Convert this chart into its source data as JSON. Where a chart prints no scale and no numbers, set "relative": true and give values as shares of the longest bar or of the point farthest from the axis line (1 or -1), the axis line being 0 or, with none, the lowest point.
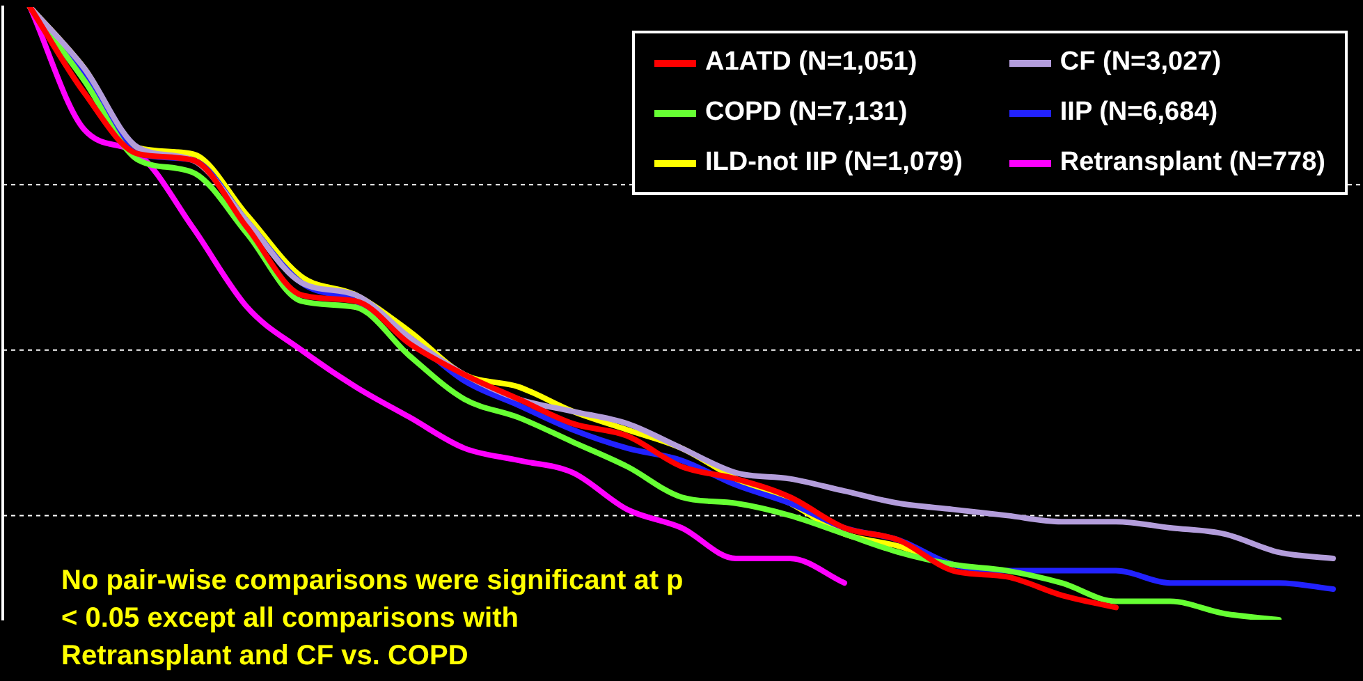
{
  "chart_data": {
    "type": "line",
    "relative": true,
    "ref_lines": [
      {
        "axis": "y",
        "value": 0.71,
        "color": "#ffffff",
        "line_style": "dashed"
      },
      {
        "axis": "y",
        "value": 0.44,
        "color": "#ffffff",
        "line_style": "dashed"
      },
      {
        "axis": "y",
        "value": 0.17,
        "color": "#ffffff",
        "line_style": "dashed"
      }
    ],
    "legend": "top right",
    "line_style": "solid",
    "marker": "none",
    "categories": [
      null,
      null,
      null,
      null,
      null,
      null,
      null,
      null,
      null,
      null,
      null,
      null,
      null,
      null,
      null,
      null,
      null,
      null,
      null,
      null,
      null,
      null,
      null,
      null,
      null
    ],
    "series": [
      {
        "name": "A1ATD (N=1,051)",
        "color": "#ff0000",
        "values": [
          1,
          0.86,
          0.76,
          0.75,
          0.64,
          0.53,
          0.52,
          0.45,
          0.4,
          0.36,
          0.32,
          0.3,
          0.25,
          0.23,
          0.2,
          0.15,
          0.13,
          0.08,
          0.07,
          0.04,
          0.02,
          null,
          null,
          null,
          null
        ]
      },
      {
        "name": "CF (N=3,027)",
        "color": "#b39ddb",
        "values": [
          1,
          0.9,
          0.77,
          0.75,
          0.65,
          0.55,
          0.53,
          0.46,
          0.4,
          0.36,
          0.34,
          0.32,
          0.28,
          0.24,
          0.23,
          0.21,
          0.19,
          0.18,
          0.17,
          0.16,
          0.16,
          0.15,
          0.14,
          0.11,
          0.1
        ]
      },
      {
        "name": "COPD (N=7,131)",
        "color": "#66ff33",
        "values": [
          1,
          0.88,
          0.75,
          0.73,
          0.63,
          0.52,
          0.51,
          0.43,
          0.36,
          0.33,
          0.29,
          0.25,
          0.2,
          0.19,
          0.17,
          0.14,
          0.11,
          0.09,
          0.08,
          0.06,
          0.03,
          0.03,
          0.01,
          0,
          null
        ]
      },
      {
        "name": "IIP (N=6,684)",
        "color": "#2222ff",
        "values": [
          1,
          0.89,
          0.76,
          0.75,
          0.65,
          0.55,
          0.52,
          0.46,
          0.39,
          0.35,
          0.31,
          0.28,
          0.26,
          0.22,
          0.19,
          0.15,
          0.13,
          0.09,
          0.08,
          0.08,
          0.08,
          0.06,
          0.06,
          0.06,
          0.05
        ]
      },
      {
        "name": "ILD-not IIP (N=1,079)",
        "color": "#ffff00",
        "values": [
          1,
          0.9,
          0.77,
          0.76,
          0.66,
          0.56,
          0.53,
          0.47,
          0.4,
          0.38,
          0.34,
          0.31,
          0.28,
          0.23,
          0.19,
          0.14,
          0.12,
          0.09,
          null,
          null,
          null,
          null,
          null,
          null,
          null
        ]
      },
      {
        "name": "Retransplant (N=778)",
        "color": "#ff00ff",
        "values": [
          1,
          0.8,
          0.76,
          0.64,
          0.51,
          0.44,
          0.38,
          0.33,
          0.28,
          0.26,
          0.24,
          0.18,
          0.15,
          0.1,
          0.1,
          0.06,
          null,
          null,
          null,
          null,
          null,
          null,
          null,
          null,
          null
        ]
      }
    ],
    "annotations": [
      "No pair-wise comparisons were significant at p < 0.05 except all comparisons with Retransplant and CF vs. COPD"
    ]
  }
}
